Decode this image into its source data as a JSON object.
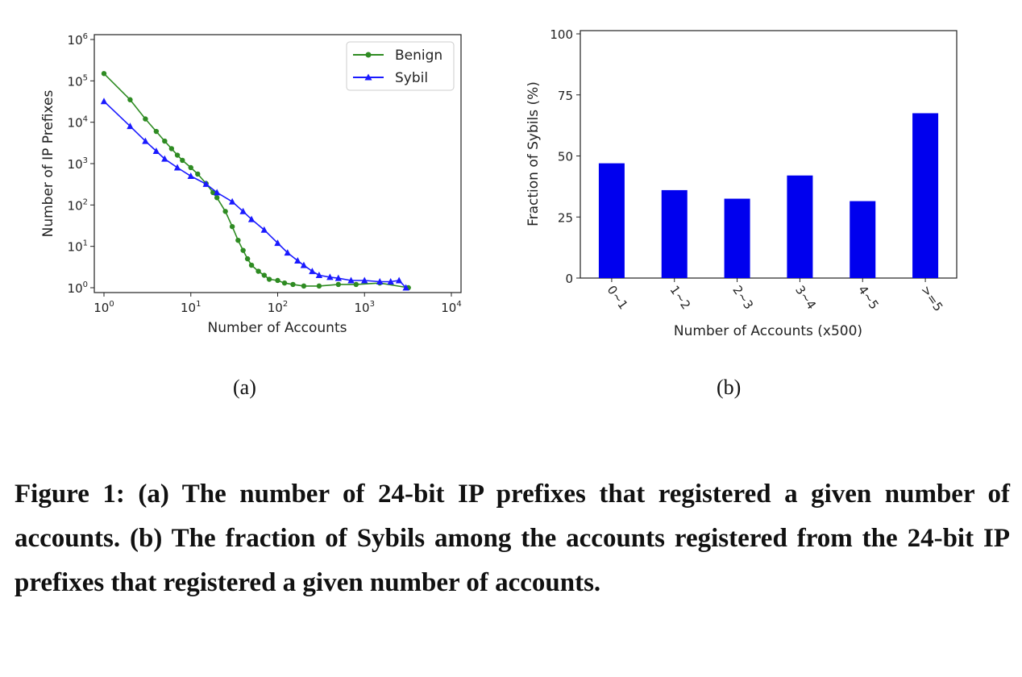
{
  "chart_data": [
    {
      "type": "line",
      "panel": "(a)",
      "xlabel": "Number of Accounts",
      "ylabel": "Number of IP Prefixes",
      "xscale": "log",
      "yscale": "log",
      "xlim": [
        1,
        10000
      ],
      "ylim": [
        1,
        1000000
      ],
      "x_tick_labels": [
        {
          "base": "10",
          "exp": "0",
          "value": 1
        },
        {
          "base": "10",
          "exp": "1",
          "value": 10
        },
        {
          "base": "10",
          "exp": "2",
          "value": 100
        },
        {
          "base": "10",
          "exp": "3",
          "value": 1000
        },
        {
          "base": "10",
          "exp": "4",
          "value": 10000
        }
      ],
      "y_tick_labels": [
        {
          "base": "10",
          "exp": "0",
          "value": 1
        },
        {
          "base": "10",
          "exp": "1",
          "value": 10
        },
        {
          "base": "10",
          "exp": "2",
          "value": 100
        },
        {
          "base": "10",
          "exp": "3",
          "value": 1000
        },
        {
          "base": "10",
          "exp": "4",
          "value": 10000
        },
        {
          "base": "10",
          "exp": "5",
          "value": 100000
        },
        {
          "base": "10",
          "exp": "6",
          "value": 1000000
        }
      ],
      "legend_position": "top-right",
      "series": [
        {
          "name": "Benign",
          "color": "#2e8b22",
          "marker": "circle",
          "points": [
            [
              1,
              150000
            ],
            [
              2,
              35000
            ],
            [
              3,
              12000
            ],
            [
              4,
              6000
            ],
            [
              5,
              3500
            ],
            [
              6,
              2300
            ],
            [
              7,
              1600
            ],
            [
              8,
              1200
            ],
            [
              10,
              800
            ],
            [
              12,
              560
            ],
            [
              15,
              330
            ],
            [
              18,
              200
            ],
            [
              20,
              150
            ],
            [
              25,
              70
            ],
            [
              30,
              30
            ],
            [
              35,
              14
            ],
            [
              40,
              8
            ],
            [
              45,
              5
            ],
            [
              50,
              3.5
            ],
            [
              60,
              2.5
            ],
            [
              70,
              2
            ],
            [
              80,
              1.6
            ],
            [
              100,
              1.5
            ],
            [
              120,
              1.3
            ],
            [
              150,
              1.2
            ],
            [
              200,
              1.1
            ],
            [
              300,
              1.1
            ],
            [
              500,
              1.2
            ],
            [
              800,
              1.2
            ],
            [
              1500,
              1.3
            ],
            [
              3200,
              1
            ]
          ]
        },
        {
          "name": "Sybil",
          "color": "#1a1aff",
          "marker": "triangle",
          "points": [
            [
              1,
              32000
            ],
            [
              2,
              8000
            ],
            [
              3,
              3500
            ],
            [
              4,
              2000
            ],
            [
              5,
              1300
            ],
            [
              7,
              800
            ],
            [
              10,
              500
            ],
            [
              15,
              320
            ],
            [
              20,
              200
            ],
            [
              30,
              120
            ],
            [
              40,
              70
            ],
            [
              50,
              45
            ],
            [
              70,
              25
            ],
            [
              100,
              12
            ],
            [
              130,
              7
            ],
            [
              170,
              4.5
            ],
            [
              200,
              3.5
            ],
            [
              250,
              2.5
            ],
            [
              300,
              2
            ],
            [
              400,
              1.8
            ],
            [
              500,
              1.7
            ],
            [
              700,
              1.5
            ],
            [
              1000,
              1.5
            ],
            [
              1500,
              1.4
            ],
            [
              2000,
              1.4
            ],
            [
              2500,
              1.5
            ],
            [
              3000,
              1
            ]
          ]
        }
      ]
    },
    {
      "type": "bar",
      "panel": "(b)",
      "xlabel": "Number of Accounts (x500)",
      "ylabel": "Fraction of Sybils (%)",
      "ylim": [
        0,
        100
      ],
      "yticks": [
        "0",
        "25",
        "50",
        "75",
        "100"
      ],
      "categories": [
        "0~1",
        "1~2",
        "2~3",
        "3~4",
        "4~5",
        ">=5"
      ],
      "values": [
        47,
        36,
        32.5,
        42,
        31.5,
        67.5
      ],
      "color": "#0000ee"
    }
  ],
  "caption": "Figure 1: (a) The number of 24-bit IP prefixes that registered a given number of accounts. (b) The fraction of Sybils among the accounts registered from the 24-bit IP prefixes that registered a given number of accounts."
}
